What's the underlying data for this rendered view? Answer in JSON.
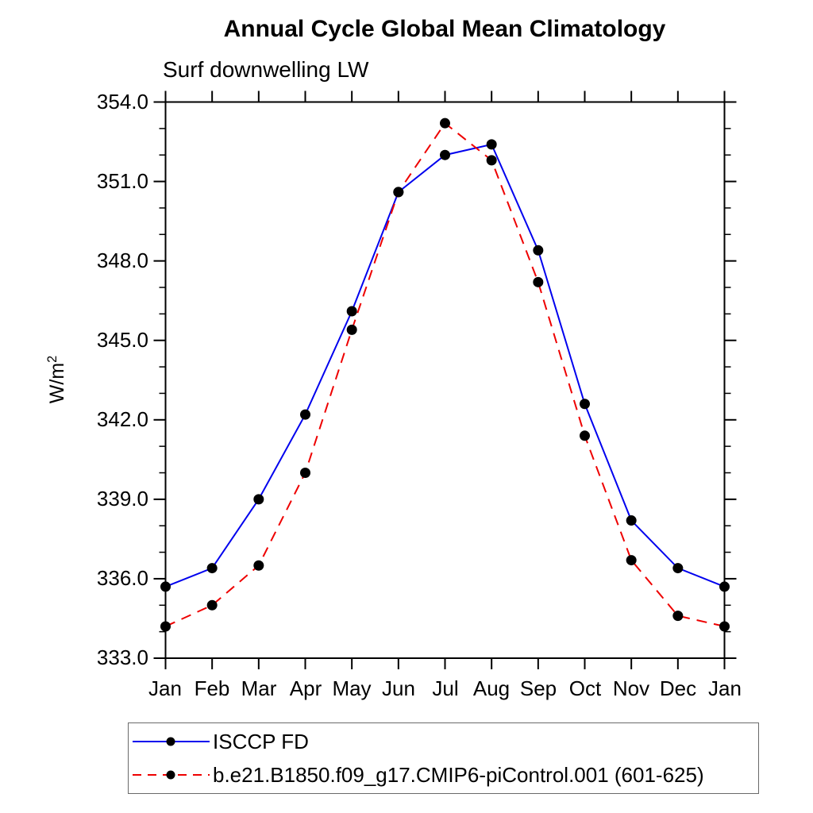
{
  "chart_data": {
    "type": "line",
    "title": "Annual Cycle Global Mean Climatology",
    "subtitle": "Surf downwelling LW",
    "ylabel": "W/m",
    "ylabel_exponent": "2",
    "categories": [
      "Jan",
      "Feb",
      "Mar",
      "Apr",
      "May",
      "Jun",
      "Jul",
      "Aug",
      "Sep",
      "Oct",
      "Nov",
      "Dec",
      "Jan"
    ],
    "ylim": [
      333,
      354
    ],
    "ytick_major_step": 3,
    "ytick_minor_step": 1,
    "ytick_labels": [
      "354.0",
      "351.0",
      "348.0",
      "345.0",
      "342.0",
      "339.0",
      "336.0",
      "333.0"
    ],
    "grid": false,
    "legend_position": "bottom-left-box",
    "marker_color": "#000000",
    "series": [
      {
        "name": "ISCCP FD",
        "color": "#0000ee",
        "style": "solid",
        "marker": "filled-circle",
        "values": [
          335.7,
          336.4,
          339.0,
          342.2,
          346.1,
          350.6,
          352.0,
          352.4,
          348.4,
          342.6,
          338.2,
          336.4,
          335.7
        ]
      },
      {
        "name": "b.e21.B1850.f09_g17.CMIP6-piControl.001 (601-625)",
        "color": "#ee0000",
        "style": "dashed",
        "marker": "filled-circle",
        "values": [
          334.2,
          335.0,
          336.5,
          340.0,
          345.4,
          350.6,
          353.2,
          351.8,
          347.2,
          341.4,
          336.7,
          334.6,
          334.2
        ]
      }
    ]
  }
}
